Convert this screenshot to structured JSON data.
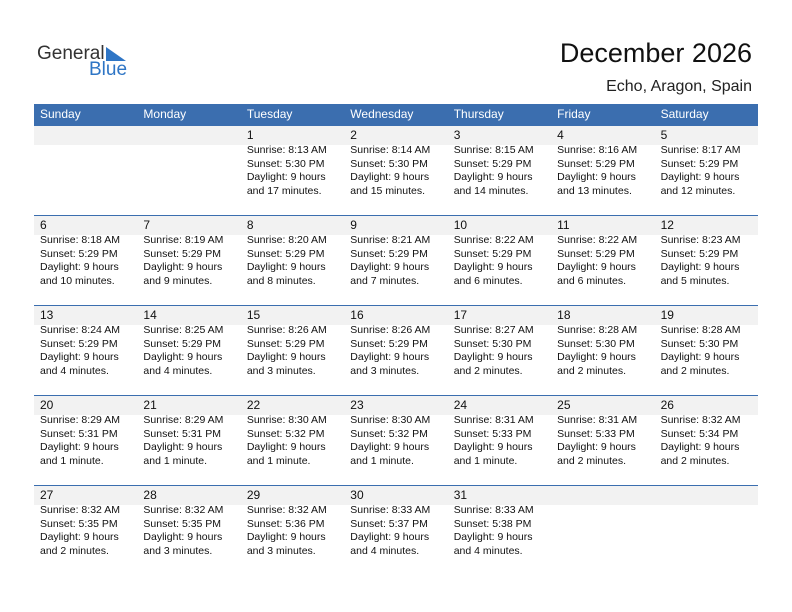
{
  "logo": {
    "word1": "General",
    "word2": "Blue"
  },
  "header": {
    "title": "December 2026",
    "location": "Echo, Aragon, Spain"
  },
  "weekdays": [
    "Sunday",
    "Monday",
    "Tuesday",
    "Wednesday",
    "Thursday",
    "Friday",
    "Saturday"
  ],
  "weeks": [
    [
      null,
      null,
      {
        "day": "1",
        "lines": [
          "Sunrise: 8:13 AM",
          "Sunset: 5:30 PM",
          "Daylight: 9 hours",
          "and 17 minutes."
        ]
      },
      {
        "day": "2",
        "lines": [
          "Sunrise: 8:14 AM",
          "Sunset: 5:30 PM",
          "Daylight: 9 hours",
          "and 15 minutes."
        ]
      },
      {
        "day": "3",
        "lines": [
          "Sunrise: 8:15 AM",
          "Sunset: 5:29 PM",
          "Daylight: 9 hours",
          "and 14 minutes."
        ]
      },
      {
        "day": "4",
        "lines": [
          "Sunrise: 8:16 AM",
          "Sunset: 5:29 PM",
          "Daylight: 9 hours",
          "and 13 minutes."
        ]
      },
      {
        "day": "5",
        "lines": [
          "Sunrise: 8:17 AM",
          "Sunset: 5:29 PM",
          "Daylight: 9 hours",
          "and 12 minutes."
        ]
      }
    ],
    [
      {
        "day": "6",
        "lines": [
          "Sunrise: 8:18 AM",
          "Sunset: 5:29 PM",
          "Daylight: 9 hours",
          "and 10 minutes."
        ]
      },
      {
        "day": "7",
        "lines": [
          "Sunrise: 8:19 AM",
          "Sunset: 5:29 PM",
          "Daylight: 9 hours",
          "and 9 minutes."
        ]
      },
      {
        "day": "8",
        "lines": [
          "Sunrise: 8:20 AM",
          "Sunset: 5:29 PM",
          "Daylight: 9 hours",
          "and 8 minutes."
        ]
      },
      {
        "day": "9",
        "lines": [
          "Sunrise: 8:21 AM",
          "Sunset: 5:29 PM",
          "Daylight: 9 hours",
          "and 7 minutes."
        ]
      },
      {
        "day": "10",
        "lines": [
          "Sunrise: 8:22 AM",
          "Sunset: 5:29 PM",
          "Daylight: 9 hours",
          "and 6 minutes."
        ]
      },
      {
        "day": "11",
        "lines": [
          "Sunrise: 8:22 AM",
          "Sunset: 5:29 PM",
          "Daylight: 9 hours",
          "and 6 minutes."
        ]
      },
      {
        "day": "12",
        "lines": [
          "Sunrise: 8:23 AM",
          "Sunset: 5:29 PM",
          "Daylight: 9 hours",
          "and 5 minutes."
        ]
      }
    ],
    [
      {
        "day": "13",
        "lines": [
          "Sunrise: 8:24 AM",
          "Sunset: 5:29 PM",
          "Daylight: 9 hours",
          "and 4 minutes."
        ]
      },
      {
        "day": "14",
        "lines": [
          "Sunrise: 8:25 AM",
          "Sunset: 5:29 PM",
          "Daylight: 9 hours",
          "and 4 minutes."
        ]
      },
      {
        "day": "15",
        "lines": [
          "Sunrise: 8:26 AM",
          "Sunset: 5:29 PM",
          "Daylight: 9 hours",
          "and 3 minutes."
        ]
      },
      {
        "day": "16",
        "lines": [
          "Sunrise: 8:26 AM",
          "Sunset: 5:29 PM",
          "Daylight: 9 hours",
          "and 3 minutes."
        ]
      },
      {
        "day": "17",
        "lines": [
          "Sunrise: 8:27 AM",
          "Sunset: 5:30 PM",
          "Daylight: 9 hours",
          "and 2 minutes."
        ]
      },
      {
        "day": "18",
        "lines": [
          "Sunrise: 8:28 AM",
          "Sunset: 5:30 PM",
          "Daylight: 9 hours",
          "and 2 minutes."
        ]
      },
      {
        "day": "19",
        "lines": [
          "Sunrise: 8:28 AM",
          "Sunset: 5:30 PM",
          "Daylight: 9 hours",
          "and 2 minutes."
        ]
      }
    ],
    [
      {
        "day": "20",
        "lines": [
          "Sunrise: 8:29 AM",
          "Sunset: 5:31 PM",
          "Daylight: 9 hours",
          "and 1 minute."
        ]
      },
      {
        "day": "21",
        "lines": [
          "Sunrise: 8:29 AM",
          "Sunset: 5:31 PM",
          "Daylight: 9 hours",
          "and 1 minute."
        ]
      },
      {
        "day": "22",
        "lines": [
          "Sunrise: 8:30 AM",
          "Sunset: 5:32 PM",
          "Daylight: 9 hours",
          "and 1 minute."
        ]
      },
      {
        "day": "23",
        "lines": [
          "Sunrise: 8:30 AM",
          "Sunset: 5:32 PM",
          "Daylight: 9 hours",
          "and 1 minute."
        ]
      },
      {
        "day": "24",
        "lines": [
          "Sunrise: 8:31 AM",
          "Sunset: 5:33 PM",
          "Daylight: 9 hours",
          "and 1 minute."
        ]
      },
      {
        "day": "25",
        "lines": [
          "Sunrise: 8:31 AM",
          "Sunset: 5:33 PM",
          "Daylight: 9 hours",
          "and 2 minutes."
        ]
      },
      {
        "day": "26",
        "lines": [
          "Sunrise: 8:32 AM",
          "Sunset: 5:34 PM",
          "Daylight: 9 hours",
          "and 2 minutes."
        ]
      }
    ],
    [
      {
        "day": "27",
        "lines": [
          "Sunrise: 8:32 AM",
          "Sunset: 5:35 PM",
          "Daylight: 9 hours",
          "and 2 minutes."
        ]
      },
      {
        "day": "28",
        "lines": [
          "Sunrise: 8:32 AM",
          "Sunset: 5:35 PM",
          "Daylight: 9 hours",
          "and 3 minutes."
        ]
      },
      {
        "day": "29",
        "lines": [
          "Sunrise: 8:32 AM",
          "Sunset: 5:36 PM",
          "Daylight: 9 hours",
          "and 3 minutes."
        ]
      },
      {
        "day": "30",
        "lines": [
          "Sunrise: 8:33 AM",
          "Sunset: 5:37 PM",
          "Daylight: 9 hours",
          "and 4 minutes."
        ]
      },
      {
        "day": "31",
        "lines": [
          "Sunrise: 8:33 AM",
          "Sunset: 5:38 PM",
          "Daylight: 9 hours",
          "and 4 minutes."
        ]
      },
      null,
      null
    ]
  ]
}
